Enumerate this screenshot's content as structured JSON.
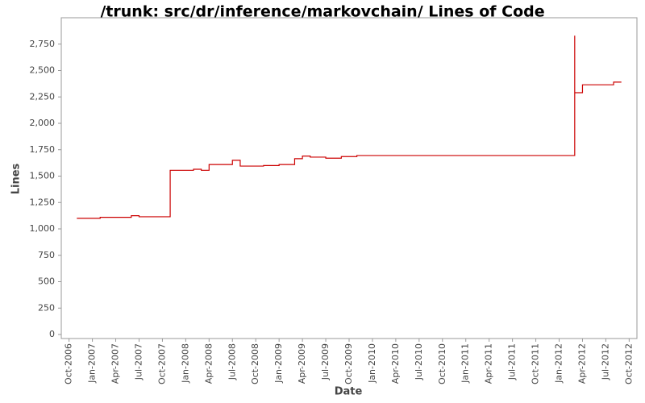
{
  "chart_data": {
    "type": "step-line",
    "title": "/trunk: src/dr/inference/markovchain/ Lines of Code",
    "x_label": "Date",
    "y_label": "Lines",
    "series": [
      {
        "name": "Lines",
        "color": "#cc0000",
        "x": [
          "2006-11",
          "2007-02",
          "2007-06",
          "2007-07",
          "2007-11",
          "2008-02",
          "2008-03",
          "2008-04",
          "2008-07",
          "2008-08",
          "2008-11",
          "2009-01",
          "2009-03",
          "2009-04",
          "2009-05",
          "2009-07",
          "2009-09",
          "2009-11",
          "2012-03",
          "2012-03",
          "2012-04",
          "2012-08",
          "2012-09"
        ],
        "values": [
          1100,
          1110,
          1125,
          1115,
          1555,
          1565,
          1555,
          1610,
          1650,
          1595,
          1600,
          1610,
          1665,
          1690,
          1680,
          1670,
          1685,
          1695,
          2830,
          2290,
          2365,
          2390,
          2390
        ]
      }
    ],
    "xlim": [
      "2006-09",
      "2012-11"
    ],
    "xticks": [
      {
        "value": "2006-10",
        "label": "Oct-2006"
      },
      {
        "value": "2007-01",
        "label": "Jan-2007"
      },
      {
        "value": "2007-04",
        "label": "Apr-2007"
      },
      {
        "value": "2007-07",
        "label": "Jul-2007"
      },
      {
        "value": "2007-10",
        "label": "Oct-2007"
      },
      {
        "value": "2008-01",
        "label": "Jan-2008"
      },
      {
        "value": "2008-04",
        "label": "Apr-2008"
      },
      {
        "value": "2008-07",
        "label": "Jul-2008"
      },
      {
        "value": "2008-10",
        "label": "Oct-2008"
      },
      {
        "value": "2009-01",
        "label": "Jan-2009"
      },
      {
        "value": "2009-04",
        "label": "Apr-2009"
      },
      {
        "value": "2009-07",
        "label": "Jul-2009"
      },
      {
        "value": "2009-10",
        "label": "Oct-2009"
      },
      {
        "value": "2010-01",
        "label": "Jan-2010"
      },
      {
        "value": "2010-04",
        "label": "Apr-2010"
      },
      {
        "value": "2010-07",
        "label": "Jul-2010"
      },
      {
        "value": "2010-10",
        "label": "Oct-2010"
      },
      {
        "value": "2011-01",
        "label": "Jan-2011"
      },
      {
        "value": "2011-04",
        "label": "Apr-2011"
      },
      {
        "value": "2011-07",
        "label": "Jul-2011"
      },
      {
        "value": "2011-10",
        "label": "Oct-2011"
      },
      {
        "value": "2012-01",
        "label": "Jan-2012"
      },
      {
        "value": "2012-04",
        "label": "Apr-2012"
      },
      {
        "value": "2012-07",
        "label": "Jul-2012"
      },
      {
        "value": "2012-10",
        "label": "Oct-2012"
      }
    ],
    "ylim": [
      0,
      3000
    ],
    "yticks": [
      0,
      250,
      500,
      750,
      {
        "value": 1000,
        "label": "1,000"
      },
      {
        "value": 1250,
        "label": "1,250"
      },
      {
        "value": 1500,
        "label": "1,500"
      },
      {
        "value": 1750,
        "label": "1,750"
      },
      {
        "value": 2000,
        "label": "2,000"
      },
      {
        "value": 2250,
        "label": "2,250"
      },
      {
        "value": 2500,
        "label": "2,500"
      },
      {
        "value": 2750,
        "label": "2,750"
      }
    ],
    "grid": false
  }
}
